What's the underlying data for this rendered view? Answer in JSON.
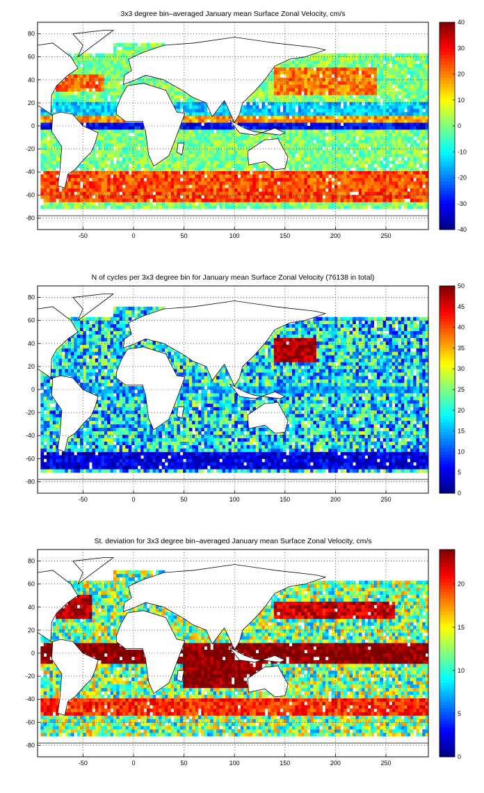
{
  "chart_data": [
    {
      "type": "heatmap",
      "title": "3x3 degree bin–averaged January mean Surface Zonal Velocity, cm/s",
      "xlim": [
        -95,
        292
      ],
      "ylim": [
        -90,
        90
      ],
      "xticks": [
        -50,
        0,
        50,
        100,
        150,
        200,
        250
      ],
      "yticks": [
        80,
        60,
        40,
        20,
        0,
        -20,
        -40,
        -60,
        -80
      ],
      "colorbar": {
        "min": -40,
        "max": 40,
        "ticks": [
          40,
          30,
          20,
          10,
          0,
          -10,
          -20,
          -30,
          -40
        ]
      },
      "bin_size_deg": 3,
      "grid": "dotted",
      "colormap": "jet",
      "field": "u",
      "regions": [
        {
          "lon": [
            -100,
            360
          ],
          "lat": [
            -4,
            2
          ],
          "value": -30
        },
        {
          "lon": [
            -100,
            360
          ],
          "lat": [
            2,
            8
          ],
          "value": 18
        },
        {
          "lon": [
            -100,
            360
          ],
          "lat": [
            8,
            20
          ],
          "value": -14
        },
        {
          "lon": [
            -100,
            360
          ],
          "lat": [
            -40,
            -65
          ],
          "value": 24
        },
        {
          "lon": [
            140,
            240
          ],
          "lat": [
            28,
            50
          ],
          "value": 20
        },
        {
          "lon": [
            -80,
            -30
          ],
          "lat": [
            30,
            45
          ],
          "value": 22
        }
      ]
    },
    {
      "type": "heatmap",
      "title": "N of cycles per 3x3 degree bin for January mean Surface Zonal Velocity (76138 in total)",
      "xlim": [
        -95,
        292
      ],
      "ylim": [
        -90,
        90
      ],
      "xticks": [
        -50,
        0,
        50,
        100,
        150,
        200,
        250
      ],
      "yticks": [
        80,
        60,
        40,
        20,
        0,
        -20,
        -40,
        -60,
        -80
      ],
      "colorbar": {
        "min": 0,
        "max": 50,
        "ticks": [
          50,
          45,
          40,
          35,
          30,
          25,
          20,
          15,
          10,
          5,
          0
        ]
      },
      "bin_size_deg": 3,
      "grid": "dotted",
      "colormap": "jet",
      "field": "n",
      "regions": [
        {
          "lon": [
            140,
            180
          ],
          "lat": [
            25,
            45
          ],
          "value": 48
        },
        {
          "lon": [
            -100,
            360
          ],
          "lat": [
            -55,
            -70
          ],
          "value": 5
        },
        {
          "lon": [
            -100,
            360
          ],
          "lat": [
            -4,
            4
          ],
          "value": 14
        }
      ]
    },
    {
      "type": "heatmap",
      "title": "St. deviation for 3x3 degree bin–averaged January mean Surface Zonal Velocity, cm/s",
      "xlim": [
        -95,
        292
      ],
      "ylim": [
        -90,
        90
      ],
      "xticks": [
        -50,
        0,
        50,
        100,
        150,
        200,
        250
      ],
      "yticks": [
        80,
        60,
        40,
        20,
        0,
        -20,
        -40,
        -60,
        -80
      ],
      "colorbar": {
        "min": 0,
        "max": 24,
        "ticks": [
          20,
          15,
          10,
          5,
          0
        ]
      },
      "bin_size_deg": 3,
      "grid": "dotted",
      "colormap": "jet",
      "field": "sd",
      "regions": [
        {
          "lon": [
            -100,
            360
          ],
          "lat": [
            -8,
            8
          ],
          "value": 24
        },
        {
          "lon": [
            50,
            130
          ],
          "lat": [
            -30,
            8
          ],
          "value": 24
        },
        {
          "lon": [
            140,
            260
          ],
          "lat": [
            30,
            45
          ],
          "value": 22
        },
        {
          "lon": [
            -100,
            360
          ],
          "lat": [
            -38,
            -55
          ],
          "value": 20
        },
        {
          "lon": [
            -80,
            -40
          ],
          "lat": [
            30,
            50
          ],
          "value": 23
        }
      ]
    }
  ]
}
